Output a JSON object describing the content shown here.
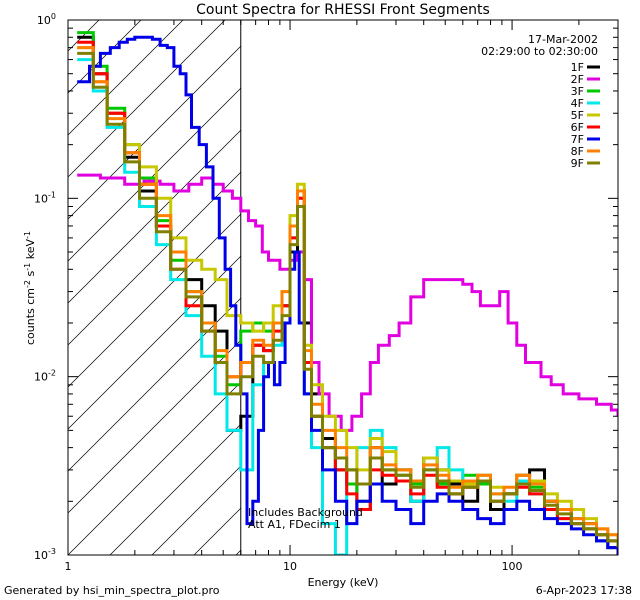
{
  "chart_data": {
    "type": "line",
    "title": "Count Spectra for RHESSI Front Segments",
    "date": "17-Mar-2002",
    "time_range": "02:29:00 to 02:30:00",
    "xlabel": "Energy (keV)",
    "ylabel_prefix": "counts cm",
    "ylabel_exp1": "-2",
    "ylabel_mid": " s",
    "ylabel_exp2": "-1",
    "ylabel_suffix": " keV",
    "ylabel_exp3": "-1",
    "xscale": "log",
    "yscale": "log",
    "xlim": [
      1,
      300
    ],
    "ylim": [
      0.001,
      1.0
    ],
    "x_ticks": [
      {
        "value": 1,
        "label": "1"
      },
      {
        "value": 10,
        "label": "10"
      },
      {
        "value": 100,
        "label": "100"
      }
    ],
    "y_ticks": [
      {
        "value": 1,
        "base": "10",
        "exp": "0"
      },
      {
        "value": 0.1,
        "base": "10",
        "exp": "-1"
      },
      {
        "value": 0.01,
        "base": "10",
        "exp": "-2"
      },
      {
        "value": 0.001,
        "base": "10",
        "exp": "-3"
      }
    ],
    "attenuator_edge_keV": 6,
    "annotations": [
      "Includes Background",
      "Att A1, FDecim  1"
    ],
    "footer_left": "Generated by hsi_min_spectra_plot.pro",
    "footer_right": "6-Apr-2023 17:38",
    "series": [
      {
        "name": "1F",
        "color": "#000000",
        "x": [
          1.1,
          1.3,
          1.5,
          1.8,
          2.1,
          2.5,
          2.9,
          3.4,
          4.0,
          4.6,
          5.2,
          6.0,
          6.8,
          7.6,
          8.4,
          9.2,
          10.0,
          10.8,
          11.6,
          12.5,
          14,
          16,
          18,
          20,
          23,
          26,
          30,
          35,
          40,
          46,
          52,
          60,
          70,
          80,
          92,
          105,
          120,
          140,
          160,
          185,
          210,
          240,
          270,
          300
        ],
        "values": [
          0.8,
          0.5,
          0.3,
          0.17,
          0.11,
          0.07,
          0.05,
          0.035,
          0.025,
          0.018,
          0.005,
          0.006,
          0.015,
          0.014,
          0.02,
          0.025,
          0.05,
          0.11,
          0.02,
          0.008,
          0.0045,
          0.003,
          0.0025,
          0.0018,
          0.004,
          0.0025,
          0.003,
          0.002,
          0.0035,
          0.003,
          0.0025,
          0.002,
          0.0025,
          0.0018,
          0.0022,
          0.0028,
          0.003,
          0.002,
          0.0018,
          0.0015,
          0.0015,
          0.0012,
          0.0011,
          0.001
        ]
      },
      {
        "name": "2F",
        "color": "#e000e0",
        "x": [
          1.1,
          1.4,
          1.8,
          2.2,
          2.6,
          3.0,
          3.5,
          4.0,
          4.5,
          5.0,
          5.5,
          6.0,
          6.5,
          7.0,
          7.5,
          8.0,
          9.0,
          10.0,
          10.8,
          11.6,
          12.5,
          13.5,
          15,
          17,
          19,
          21,
          23,
          25,
          28,
          31,
          35,
          40,
          45,
          50,
          55,
          60,
          66,
          72,
          80,
          88,
          96,
          105,
          115,
          125,
          135,
          150,
          170,
          200,
          240,
          280,
          300
        ],
        "values": [
          0.135,
          0.13,
          0.12,
          0.125,
          0.12,
          0.11,
          0.12,
          0.13,
          0.12,
          0.11,
          0.1,
          0.085,
          0.075,
          0.07,
          0.05,
          0.045,
          0.04,
          0.045,
          0.05,
          0.035,
          0.012,
          0.008,
          0.006,
          0.005,
          0.006,
          0.008,
          0.012,
          0.015,
          0.017,
          0.02,
          0.028,
          0.035,
          0.035,
          0.035,
          0.035,
          0.033,
          0.03,
          0.025,
          0.025,
          0.03,
          0.02,
          0.015,
          0.012,
          0.012,
          0.01,
          0.009,
          0.008,
          0.0075,
          0.007,
          0.0065,
          0.006
        ]
      },
      {
        "name": "3F",
        "color": "#00c800",
        "x": [
          1.1,
          1.3,
          1.5,
          1.8,
          2.1,
          2.5,
          2.9,
          3.4,
          4.0,
          4.6,
          5.2,
          6.0,
          6.8,
          7.6,
          8.4,
          9.2,
          10.0,
          10.8,
          11.6,
          12.5,
          14,
          16,
          18,
          20,
          23,
          26,
          30,
          35,
          40,
          46,
          52,
          60,
          70,
          80,
          92,
          105,
          120,
          140,
          160,
          185,
          210,
          240,
          270,
          300
        ],
        "values": [
          0.85,
          0.55,
          0.32,
          0.2,
          0.13,
          0.075,
          0.045,
          0.03,
          0.02,
          0.013,
          0.009,
          0.018,
          0.02,
          0.018,
          0.02,
          0.025,
          0.07,
          0.09,
          0.012,
          0.006,
          0.004,
          0.003,
          0.0025,
          0.002,
          0.0035,
          0.003,
          0.0028,
          0.0025,
          0.003,
          0.0025,
          0.0022,
          0.0028,
          0.0025,
          0.002,
          0.0022,
          0.0026,
          0.0024,
          0.002,
          0.0018,
          0.0016,
          0.0014,
          0.0013,
          0.0012,
          0.001
        ]
      },
      {
        "name": "4F",
        "color": "#00e8e8",
        "x": [
          1.1,
          1.3,
          1.5,
          1.8,
          2.1,
          2.5,
          2.9,
          3.4,
          4.0,
          4.6,
          5.2,
          6.0,
          6.8,
          7.6,
          8.4,
          9.2,
          10.0,
          10.8,
          11.6,
          12.5,
          14,
          16,
          18,
          20,
          23,
          26,
          30,
          35,
          40,
          46,
          52,
          60,
          70,
          80,
          92,
          105,
          120,
          140,
          160,
          185,
          210,
          240,
          270,
          300
        ],
        "values": [
          0.6,
          0.4,
          0.25,
          0.14,
          0.09,
          0.055,
          0.035,
          0.022,
          0.013,
          0.008,
          0.005,
          0.003,
          0.009,
          0.012,
          0.015,
          0.02,
          0.06,
          0.1,
          0.008,
          0.004,
          0.0015,
          0.001,
          0.003,
          0.004,
          0.005,
          0.004,
          0.003,
          0.002,
          0.003,
          0.004,
          0.003,
          0.0025,
          0.0028,
          0.0022,
          0.002,
          0.0026,
          0.0022,
          0.0018,
          0.0016,
          0.0015,
          0.0014,
          0.0012,
          0.0012,
          0.001
        ]
      },
      {
        "name": "5F",
        "color": "#c8c800",
        "x": [
          1.1,
          1.3,
          1.5,
          1.8,
          2.1,
          2.5,
          2.9,
          3.4,
          4.0,
          4.6,
          5.2,
          6.0,
          6.8,
          7.6,
          8.4,
          9.2,
          10.0,
          10.8,
          11.6,
          12.5,
          14,
          16,
          18,
          20,
          23,
          26,
          30,
          35,
          40,
          46,
          52,
          60,
          70,
          80,
          92,
          105,
          120,
          140,
          160,
          185,
          210,
          240,
          270,
          300
        ],
        "values": [
          0.7,
          0.45,
          0.3,
          0.2,
          0.15,
          0.1,
          0.06,
          0.045,
          0.04,
          0.035,
          0.022,
          0.02,
          0.018,
          0.02,
          0.025,
          0.03,
          0.08,
          0.12,
          0.015,
          0.009,
          0.006,
          0.005,
          0.004,
          0.003,
          0.0045,
          0.0038,
          0.003,
          0.0026,
          0.0035,
          0.003,
          0.0026,
          0.0025,
          0.0028,
          0.0024,
          0.0022,
          0.0028,
          0.0026,
          0.0022,
          0.002,
          0.0018,
          0.0016,
          0.0014,
          0.0013,
          0.0012
        ]
      },
      {
        "name": "6F",
        "color": "#ff0000",
        "x": [
          1.1,
          1.3,
          1.5,
          1.8,
          2.1,
          2.5,
          2.9,
          3.4,
          4.0,
          4.6,
          5.2,
          6.0,
          6.8,
          7.6,
          8.4,
          9.2,
          10.0,
          10.8,
          11.6,
          12.5,
          14,
          16,
          18,
          20,
          23,
          26,
          30,
          35,
          40,
          46,
          52,
          60,
          70,
          80,
          92,
          105,
          120,
          140,
          160,
          185,
          210,
          240,
          270,
          300
        ],
        "values": [
          0.75,
          0.5,
          0.3,
          0.18,
          0.12,
          0.07,
          0.04,
          0.025,
          0.018,
          0.012,
          0.01,
          0.012,
          0.015,
          0.014,
          0.018,
          0.025,
          0.06,
          0.1,
          0.012,
          0.006,
          0.004,
          0.003,
          0.0022,
          0.0018,
          0.003,
          0.0028,
          0.0026,
          0.0022,
          0.0028,
          0.0024,
          0.0022,
          0.0024,
          0.0026,
          0.002,
          0.0022,
          0.0024,
          0.0022,
          0.0018,
          0.0016,
          0.0015,
          0.0014,
          0.0013,
          0.0012,
          0.0011
        ]
      },
      {
        "name": "7F",
        "color": "#0000e8",
        "x": [
          1.1,
          1.25,
          1.4,
          1.55,
          1.7,
          1.85,
          2.0,
          2.2,
          2.4,
          2.6,
          2.8,
          3.0,
          3.2,
          3.4,
          3.6,
          3.9,
          4.2,
          4.5,
          4.8,
          5.1,
          5.4,
          5.7,
          6.0,
          6.4,
          6.8,
          7.2,
          7.6,
          8.0,
          8.5,
          9.0,
          9.5,
          10.0,
          10.5,
          11,
          11.6,
          12.5,
          14,
          16,
          18,
          20,
          23,
          26,
          30,
          35,
          40,
          46,
          52,
          60,
          70,
          80,
          92,
          105,
          120,
          140,
          160,
          185,
          210,
          240,
          270,
          300
        ],
        "values": [
          0.45,
          0.55,
          0.65,
          0.7,
          0.75,
          0.78,
          0.8,
          0.8,
          0.78,
          0.72,
          0.7,
          0.55,
          0.5,
          0.38,
          0.25,
          0.2,
          0.15,
          0.1,
          0.06,
          0.04,
          0.025,
          0.015,
          0.008,
          0.0015,
          0.002,
          0.005,
          0.01,
          0.012,
          0.009,
          0.012,
          0.02,
          0.04,
          0.05,
          0.02,
          0.008,
          0.005,
          0.003,
          0.002,
          0.0015,
          0.002,
          0.0025,
          0.002,
          0.0018,
          0.0015,
          0.002,
          0.0022,
          0.002,
          0.0018,
          0.0016,
          0.0015,
          0.0018,
          0.002,
          0.0018,
          0.0016,
          0.0015,
          0.0014,
          0.0013,
          0.0012,
          0.0011,
          0.001
        ]
      },
      {
        "name": "8F",
        "color": "#ff8000",
        "x": [
          1.1,
          1.3,
          1.5,
          1.8,
          2.1,
          2.5,
          2.9,
          3.4,
          4.0,
          4.6,
          5.2,
          6.0,
          6.8,
          7.6,
          8.4,
          9.2,
          10.0,
          10.8,
          11.6,
          12.5,
          14,
          16,
          18,
          20,
          23,
          26,
          30,
          35,
          40,
          46,
          52,
          60,
          70,
          80,
          92,
          105,
          120,
          140,
          160,
          185,
          210,
          240,
          270,
          300
        ],
        "values": [
          0.7,
          0.45,
          0.28,
          0.18,
          0.12,
          0.08,
          0.05,
          0.03,
          0.02,
          0.014,
          0.01,
          0.012,
          0.016,
          0.015,
          0.02,
          0.03,
          0.07,
          0.11,
          0.014,
          0.007,
          0.005,
          0.004,
          0.003,
          0.0025,
          0.004,
          0.0032,
          0.003,
          0.0026,
          0.0032,
          0.0028,
          0.0024,
          0.0026,
          0.0028,
          0.0022,
          0.0024,
          0.0028,
          0.0025,
          0.002,
          0.0018,
          0.0016,
          0.0015,
          0.0014,
          0.0013,
          0.0012
        ]
      },
      {
        "name": "9F",
        "color": "#808000",
        "x": [
          1.1,
          1.3,
          1.5,
          1.8,
          2.1,
          2.5,
          2.9,
          3.4,
          4.0,
          4.6,
          5.2,
          6.0,
          6.8,
          7.6,
          8.4,
          9.2,
          10.0,
          10.8,
          11.6,
          12.5,
          14,
          16,
          18,
          20,
          23,
          26,
          30,
          35,
          40,
          46,
          52,
          60,
          70,
          80,
          92,
          105,
          120,
          140,
          160,
          185,
          210,
          240,
          270,
          300
        ],
        "values": [
          0.65,
          0.42,
          0.26,
          0.16,
          0.1,
          0.065,
          0.04,
          0.028,
          0.018,
          0.012,
          0.008,
          0.01,
          0.013,
          0.012,
          0.016,
          0.022,
          0.055,
          0.09,
          0.011,
          0.006,
          0.004,
          0.0035,
          0.003,
          0.0025,
          0.0035,
          0.003,
          0.0028,
          0.0024,
          0.003,
          0.0026,
          0.0022,
          0.0024,
          0.0026,
          0.002,
          0.0022,
          0.0025,
          0.0023,
          0.0019,
          0.0017,
          0.0015,
          0.0014,
          0.0013,
          0.0012,
          0.0011
        ]
      }
    ]
  }
}
